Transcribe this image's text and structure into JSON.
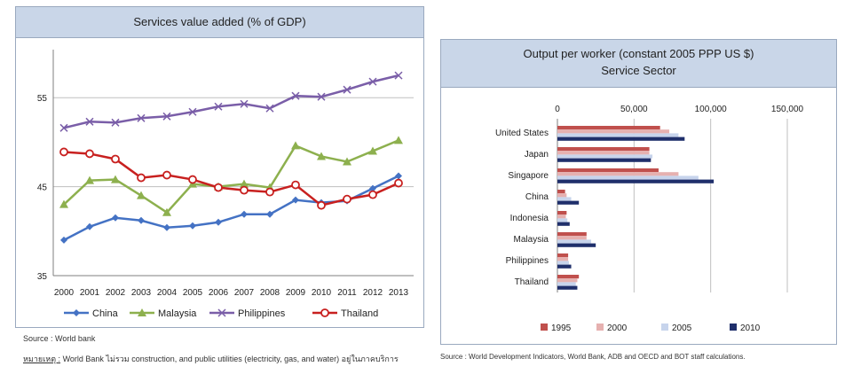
{
  "chart_data": [
    {
      "type": "line",
      "title": "Services value added (% of GDP)",
      "x": [
        "2000",
        "2001",
        "2002",
        "2003",
        "2004",
        "2005",
        "2006",
        "2007",
        "2008",
        "2009",
        "2010",
        "2011",
        "2012",
        "2013"
      ],
      "ylim": [
        35,
        60
      ],
      "yticks": [
        35,
        45,
        55
      ],
      "grid": "horizontal",
      "legend": "bottom",
      "series": [
        {
          "name": "China",
          "color": "#4472c4",
          "marker": "diamond",
          "values": [
            39.0,
            40.5,
            41.5,
            41.2,
            40.4,
            40.6,
            41.0,
            41.9,
            41.9,
            43.5,
            43.2,
            43.4,
            44.8,
            46.2
          ]
        },
        {
          "name": "Malaysia",
          "color": "#8db04e",
          "marker": "triangle",
          "values": [
            43.0,
            45.7,
            45.8,
            44.0,
            42.1,
            45.3,
            45.0,
            45.3,
            44.9,
            49.6,
            48.4,
            47.8,
            49.0,
            50.2
          ]
        },
        {
          "name": "Philippines",
          "color": "#7a5ea8",
          "marker": "x",
          "values": [
            51.6,
            52.3,
            52.2,
            52.7,
            52.9,
            53.4,
            54.0,
            54.3,
            53.8,
            55.2,
            55.1,
            55.9,
            56.8,
            57.5
          ]
        },
        {
          "name": "Thailand",
          "color": "#c8201f",
          "marker": "circle",
          "values": [
            48.9,
            48.7,
            48.1,
            46.0,
            46.3,
            45.8,
            44.9,
            44.6,
            44.4,
            45.2,
            42.9,
            43.6,
            44.1,
            45.4
          ]
        }
      ]
    },
    {
      "type": "bar",
      "orientation": "horizontal",
      "title": "Output per worker (constant 2005 PPP US $)",
      "subtitle": "Service Sector",
      "categories": [
        "United States",
        "Japan",
        "Singapore",
        "China",
        "Indonesia",
        "Malaysia",
        "Philippines",
        "Thailand"
      ],
      "xlim": [
        0,
        150000
      ],
      "xticks": [
        0,
        50000,
        100000,
        150000
      ],
      "xtick_labels": [
        "0",
        "50,000",
        "100,000",
        "150,000"
      ],
      "axis_position": "top",
      "grid": "vertical",
      "legend": "bottom",
      "series": [
        {
          "name": "1995",
          "color": "#c0504d",
          "values": [
            67000,
            60000,
            66000,
            5000,
            6000,
            19000,
            7000,
            14000
          ]
        },
        {
          "name": "2000",
          "color": "#e6b1b0",
          "values": [
            73000,
            60000,
            79000,
            6000,
            5500,
            19000,
            7000,
            13000
          ]
        },
        {
          "name": "2005",
          "color": "#c7d4ec",
          "values": [
            79000,
            62000,
            92000,
            9000,
            6500,
            22000,
            7500,
            12000
          ]
        },
        {
          "name": "2010",
          "color": "#1f2f6b",
          "values": [
            83000,
            61000,
            102000,
            14000,
            8000,
            25000,
            9000,
            13000
          ]
        }
      ]
    }
  ],
  "notes": {
    "left_source": "Source : World bank",
    "left_note_label": "หมายเหตุ :",
    "left_note_text": "World Bank ไม่รวม construction, and public utilities (electricity, gas, and water) อยู่ในภาคบริการ",
    "right_source": "Source : World Development Indicators, World Bank, ADB and OECD and BOT staff calculations."
  }
}
